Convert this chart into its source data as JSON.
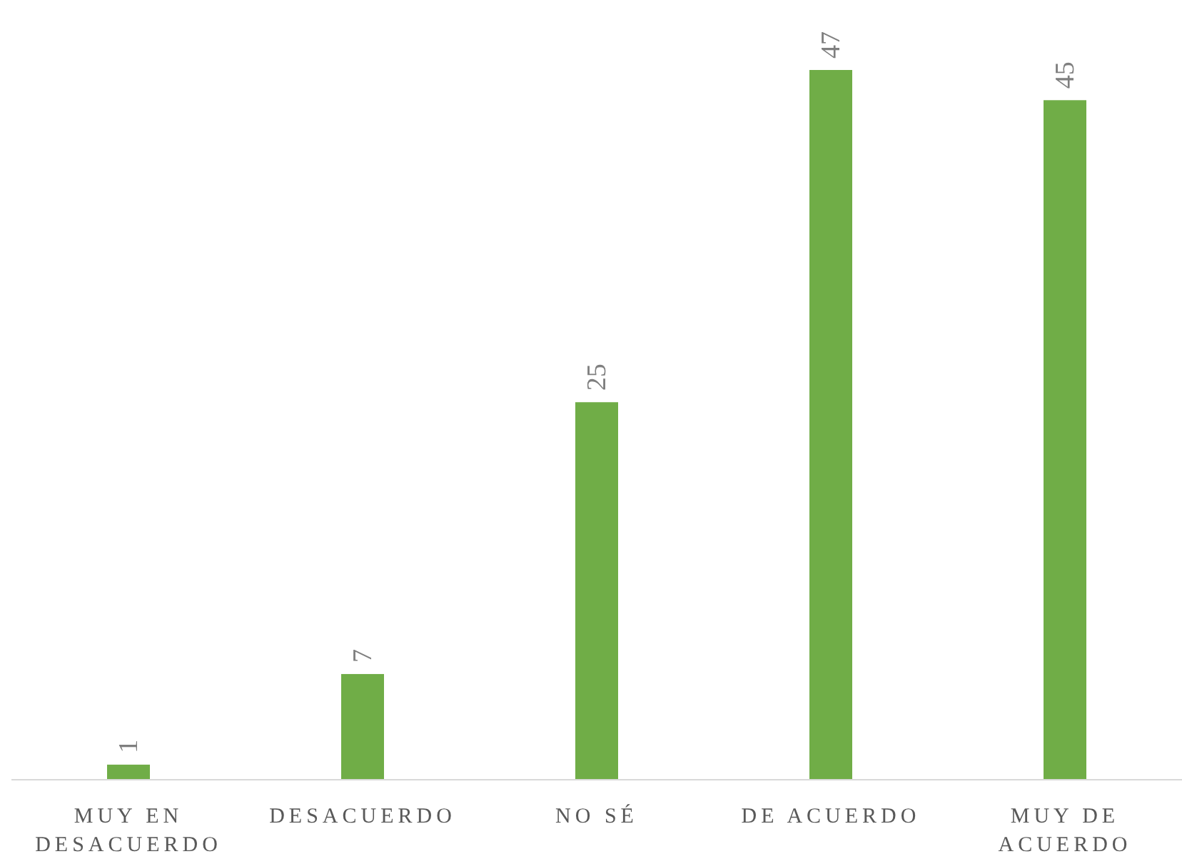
{
  "chart_data": {
    "type": "bar",
    "categories": [
      "MUY EN DESACUERDO",
      "DESACUERDO",
      "NO SÉ",
      "DE ACUERDO",
      "MUY DE ACUERDO"
    ],
    "values": [
      1,
      7,
      25,
      47,
      45
    ],
    "color": "#70ad47",
    "data_labels": true
  }
}
